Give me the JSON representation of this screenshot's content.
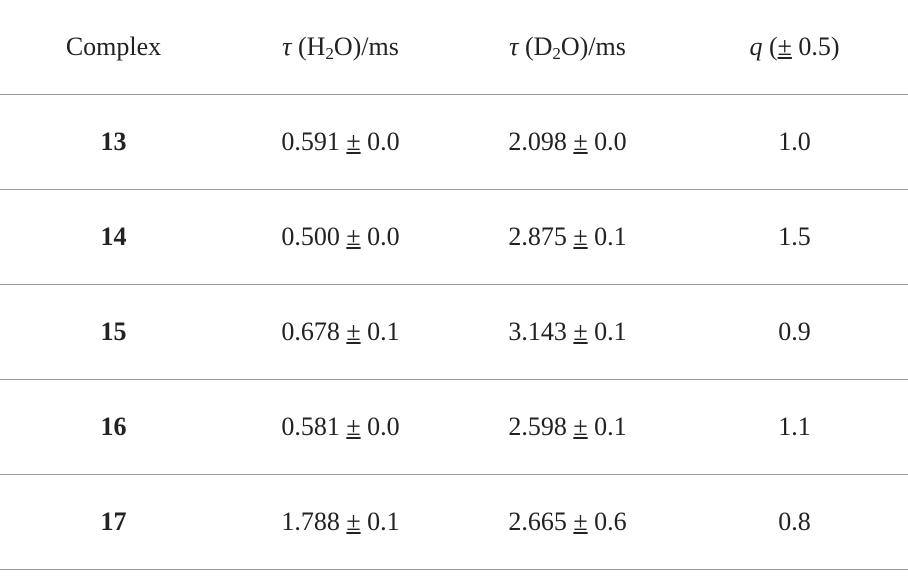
{
  "table": {
    "header": [
      "Complex",
      [
        "τ",
        " (H",
        "2",
        "O)/ms"
      ],
      [
        "τ",
        " (D",
        "2",
        "O)/ms"
      ],
      [
        "q",
        " (",
        "±",
        " 0.5)"
      ]
    ],
    "rows": [
      [
        "13",
        [
          "0.591 ",
          "±",
          " 0.0"
        ],
        [
          "2.098 ",
          "±",
          " 0.0"
        ],
        "1.0"
      ],
      [
        "14",
        [
          "0.500 ",
          "±",
          " 0.0"
        ],
        [
          "2.875 ",
          "±",
          " 0.1"
        ],
        "1.5"
      ],
      [
        "15",
        [
          "0.678 ",
          "±",
          " 0.1"
        ],
        [
          "3.143 ",
          "±",
          " 0.1"
        ],
        "0.9"
      ],
      [
        "16",
        [
          "0.581 ",
          "±",
          " 0.0"
        ],
        [
          "2.598 ",
          "±",
          " 0.1"
        ],
        "1.1"
      ],
      [
        "17",
        [
          "1.788 ",
          "±",
          " 0.1"
        ],
        [
          "2.665 ",
          "±",
          " 0.6"
        ],
        "0.8"
      ]
    ]
  }
}
